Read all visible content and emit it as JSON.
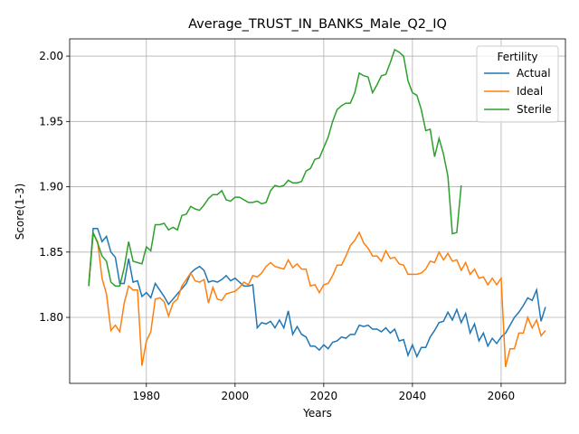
{
  "chart_data": {
    "type": "line",
    "title": "Average_TRUST_IN_BANKS_Male_Q2_IQ",
    "x_label": "Years",
    "y_label": "Score(1-3)",
    "legend_title": "Fertility",
    "legend_position": "upper right",
    "grid": true,
    "x": [
      1967,
      1968,
      1969,
      1970,
      1971,
      1972,
      1973,
      1974,
      1975,
      1976,
      1977,
      1978,
      1979,
      1980,
      1981,
      1982,
      1983,
      1984,
      1985,
      1986,
      1987,
      1988,
      1989,
      1990,
      1991,
      1992,
      1993,
      1994,
      1995,
      1996,
      1997,
      1998,
      1999,
      2000,
      2001,
      2002,
      2003,
      2004,
      2005,
      2006,
      2007,
      2008,
      2009,
      2010,
      2011,
      2012,
      2013,
      2014,
      2015,
      2016,
      2017,
      2018,
      2019,
      2020,
      2021,
      2022,
      2023,
      2024,
      2025,
      2026,
      2027,
      2028,
      2029,
      2030,
      2031,
      2032,
      2033,
      2034,
      2035,
      2036,
      2037,
      2038,
      2039,
      2040,
      2041,
      2042,
      2043,
      2044,
      2045,
      2046,
      2047,
      2048,
      2049,
      2050,
      2051,
      2052,
      2053,
      2054,
      2055,
      2056,
      2057,
      2058,
      2059,
      2060,
      2061,
      2062,
      2063,
      2064,
      2065,
      2066,
      2067,
      2068,
      2069,
      2070
    ],
    "series": [
      {
        "name": "Actual",
        "color": "#1f77b4",
        "values": [
          1.824,
          1.868,
          1.868,
          1.858,
          1.862,
          1.85,
          1.846,
          1.826,
          1.826,
          1.845,
          1.827,
          1.828,
          1.816,
          1.819,
          1.815,
          1.826,
          1.821,
          1.816,
          1.81,
          1.814,
          1.818,
          1.822,
          1.826,
          1.834,
          1.837,
          1.839,
          1.836,
          1.827,
          1.828,
          1.827,
          1.829,
          1.832,
          1.828,
          1.83,
          1.827,
          1.824,
          1.824,
          1.825,
          1.792,
          1.796,
          1.795,
          1.797,
          1.792,
          1.798,
          1.792,
          1.805,
          1.787,
          1.793,
          1.787,
          1.785,
          1.778,
          1.778,
          1.775,
          1.779,
          1.776,
          1.781,
          1.782,
          1.785,
          1.784,
          1.787,
          1.787,
          1.794,
          1.793,
          1.794,
          1.791,
          1.791,
          1.789,
          1.792,
          1.788,
          1.791,
          1.782,
          1.783,
          1.771,
          1.779,
          1.77,
          1.777,
          1.777,
          1.785,
          1.79,
          1.796,
          1.797,
          1.804,
          1.798,
          1.806,
          1.796,
          1.803,
          1.788,
          1.795,
          1.782,
          1.788,
          1.778,
          1.784,
          1.78,
          1.785,
          1.788,
          1.794,
          1.8,
          1.804,
          1.809,
          1.815,
          1.813,
          1.821,
          1.797,
          1.808
        ]
      },
      {
        "name": "Ideal",
        "color": "#ff7f0e",
        "values": [
          1.826,
          1.864,
          1.858,
          1.83,
          1.818,
          1.79,
          1.794,
          1.789,
          1.811,
          1.824,
          1.821,
          1.821,
          1.763,
          1.782,
          1.789,
          1.814,
          1.815,
          1.812,
          1.801,
          1.811,
          1.814,
          1.824,
          1.829,
          1.834,
          1.828,
          1.827,
          1.829,
          1.811,
          1.823,
          1.814,
          1.813,
          1.818,
          1.819,
          1.82,
          1.823,
          1.827,
          1.825,
          1.832,
          1.831,
          1.834,
          1.839,
          1.842,
          1.839,
          1.838,
          1.837,
          1.844,
          1.838,
          1.841,
          1.837,
          1.837,
          1.824,
          1.825,
          1.819,
          1.825,
          1.826,
          1.832,
          1.84,
          1.84,
          1.847,
          1.855,
          1.859,
          1.865,
          1.857,
          1.853,
          1.847,
          1.847,
          1.843,
          1.851,
          1.845,
          1.846,
          1.841,
          1.84,
          1.833,
          1.833,
          1.833,
          1.834,
          1.837,
          1.843,
          1.842,
          1.85,
          1.844,
          1.849,
          1.843,
          1.844,
          1.836,
          1.842,
          1.833,
          1.837,
          1.83,
          1.831,
          1.825,
          1.83,
          1.825,
          1.83,
          1.762,
          1.776,
          1.776,
          1.788,
          1.788,
          1.8,
          1.792,
          1.798,
          1.786,
          1.79
        ]
      },
      {
        "name": "Sterile",
        "color": "#2ca02c",
        "values": [
          1.824,
          1.865,
          1.857,
          1.847,
          1.843,
          1.827,
          1.824,
          1.824,
          1.838,
          1.858,
          1.843,
          1.842,
          1.841,
          1.854,
          1.851,
          1.871,
          1.871,
          1.872,
          1.867,
          1.869,
          1.867,
          1.878,
          1.879,
          1.885,
          1.883,
          1.882,
          1.886,
          1.891,
          1.894,
          1.894,
          1.897,
          1.89,
          1.889,
          1.892,
          1.892,
          1.89,
          1.888,
          1.888,
          1.889,
          1.887,
          1.888,
          1.897,
          1.901,
          1.9,
          1.901,
          1.905,
          1.903,
          1.903,
          1.904,
          1.912,
          1.914,
          1.921,
          1.922,
          1.93,
          1.938,
          1.95,
          1.959,
          1.962,
          1.964,
          1.964,
          1.972,
          1.987,
          1.985,
          1.984,
          1.972,
          1.978,
          1.985,
          1.986,
          1.995,
          2.005,
          2.003,
          2.0,
          1.981,
          1.972,
          1.97,
          1.959,
          1.943,
          1.944,
          1.923,
          1.937,
          1.925,
          1.908,
          1.864,
          1.865,
          1.901,
          null,
          null,
          null,
          null,
          null,
          null,
          null,
          null,
          null,
          null,
          null,
          null,
          null,
          null,
          null,
          null,
          null,
          null,
          null
        ]
      }
    ],
    "xlim": [
      1962.7,
      2074.5
    ],
    "ylim": [
      1.7495,
      2.0132
    ],
    "xticks": [
      1980,
      2000,
      2020,
      2040,
      2060
    ],
    "yticks": [
      {
        "value": 1.8,
        "label": "1.80"
      },
      1.85,
      {
        "value": 1.9,
        "label": "1.90"
      },
      1.95,
      {
        "value": 2.0,
        "label": "2.00"
      }
    ]
  }
}
